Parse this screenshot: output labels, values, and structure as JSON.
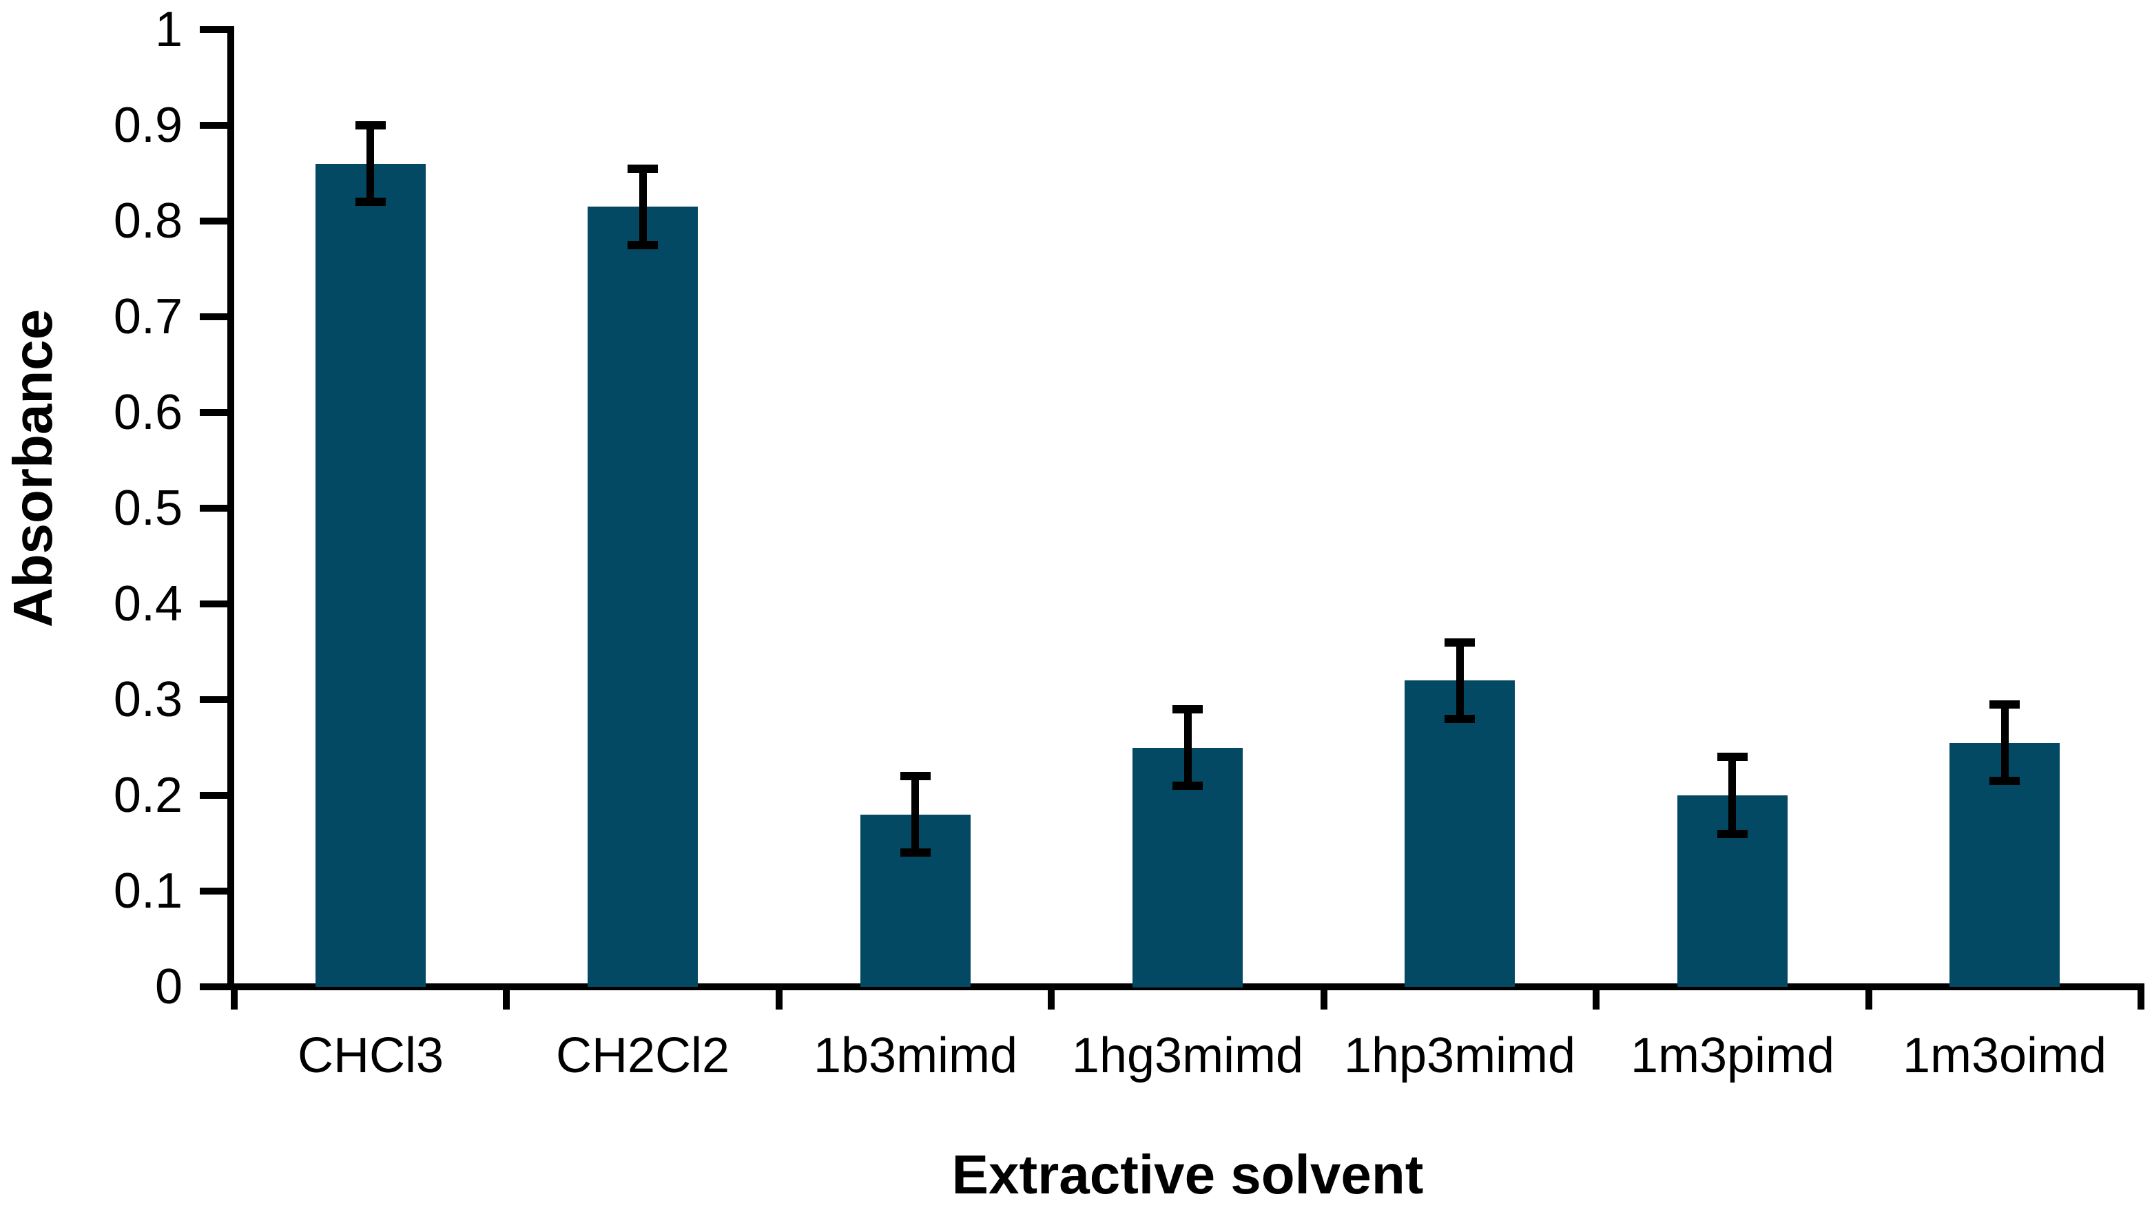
{
  "chart_data": {
    "type": "bar",
    "title": "",
    "xlabel": "Extractive solvent",
    "ylabel": "Absorbance",
    "categories": [
      "CHCl3",
      "CH2Cl2",
      "1b3mimd",
      "1hg3mimd",
      "1hp3mimd",
      "1m3pimd",
      "1m3oimd"
    ],
    "values": [
      0.86,
      0.815,
      0.18,
      0.25,
      0.32,
      0.2,
      0.255
    ],
    "errors": [
      0.04,
      0.04,
      0.04,
      0.04,
      0.04,
      0.04,
      0.04
    ],
    "ylim": [
      0,
      1
    ],
    "ytick_step": 0.1,
    "ytick_labels": [
      "0",
      "0.1",
      "0.2",
      "0.3",
      "0.4",
      "0.5",
      "0.6",
      "0.7",
      "0.8",
      "0.9",
      "1"
    ],
    "grid": false,
    "legend": null,
    "bar_color": "#044963",
    "error_color": "#000000",
    "axis_color": "#000000",
    "text_color": "#000000"
  }
}
